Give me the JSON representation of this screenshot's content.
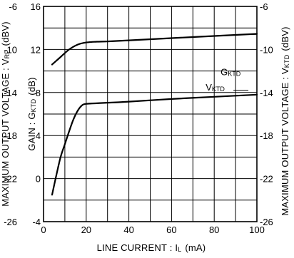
{
  "chart_data": {
    "type": "line",
    "xlabel": "LINE CURRENT : IL (mA)",
    "xlabel_parts": {
      "main": "LINE CURRENT : I",
      "sub": "L",
      "tail": "(mA)"
    },
    "x_ticks": [
      "0",
      "20",
      "40",
      "60",
      "80",
      "100"
    ],
    "xlim": [
      0,
      100
    ],
    "y_left_outer": {
      "label": "MAXIMUM OUTPUT VOLTAGE : VRP (dBV)",
      "label_parts": {
        "main": "MAXIMUM OUTPUT VOLTAGE : V",
        "sub": "RP",
        "tail": "(dBV)"
      },
      "ticks": [
        "-6",
        "-10",
        "-14",
        "-18",
        "-22",
        "-26"
      ],
      "ylim": [
        -26,
        -6
      ]
    },
    "y_left_inner": {
      "label": "GAIN : GKTD (dB)",
      "label_parts": {
        "main": "GAIN : G",
        "sub": "KTD",
        "tail": "(dB)"
      },
      "ticks": [
        "16",
        "12",
        "8",
        "4",
        "0",
        "-4"
      ],
      "ylim": [
        -4,
        16
      ]
    },
    "y_right": {
      "label": "MAXIMUM OUTPUT VOLTAGE : VKTD (dBV)",
      "label_parts": {
        "main": "MAXIMUM OUTPUT VOLTAGE : V",
        "sub": "KTD",
        "tail": "(dBV)"
      },
      "ticks": [
        "-6",
        "-10",
        "-14",
        "-18",
        "-22",
        "-26"
      ],
      "ylim": [
        -26,
        -6
      ]
    },
    "grid": true,
    "series": [
      {
        "name": "GKTD",
        "label_parts": {
          "main": "G",
          "sub": "KTD"
        },
        "axis": "gain",
        "x": [
          4,
          8,
          12,
          16,
          20,
          25,
          30,
          40,
          60,
          80,
          100
        ],
        "y": [
          10.6,
          11.3,
          12.0,
          12.45,
          12.65,
          12.72,
          12.75,
          12.85,
          13.05,
          13.25,
          13.45
        ]
      },
      {
        "name": "VKTD",
        "label_parts": {
          "main": "V",
          "sub": "KTD"
        },
        "axis": "voltage",
        "x": [
          4,
          6,
          8,
          10,
          12,
          14,
          16,
          18,
          20,
          25,
          30,
          40,
          60,
          80,
          100
        ],
        "y": [
          -23.5,
          -21.7,
          -20.0,
          -18.8,
          -17.6,
          -16.5,
          -15.7,
          -15.2,
          -15.05,
          -15.0,
          -14.95,
          -14.85,
          -14.6,
          -14.4,
          -14.2
        ]
      }
    ]
  }
}
